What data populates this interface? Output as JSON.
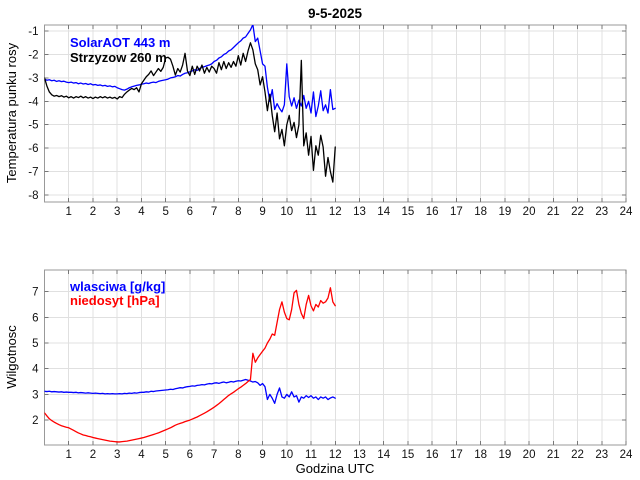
{
  "figure": {
    "title": "9-5-2025",
    "xlabel": "Godzina UTC"
  },
  "colors": {
    "background": "#ffffff",
    "grid": "#e0e0e0",
    "frame": "#999999",
    "tick": "#777777",
    "blue": "#0000ff",
    "black": "#000000",
    "red": "#ff0000"
  },
  "chart_data": [
    {
      "type": "line",
      "title": "9-5-2025",
      "ylabel": "Temperatura punku rosy",
      "xlabel": "",
      "xlim": [
        0,
        24
      ],
      "ylim": [
        -8.3,
        -0.74
      ],
      "xticks": [
        1,
        2,
        3,
        4,
        5,
        6,
        7,
        8,
        9,
        10,
        11,
        12,
        13,
        14,
        15,
        16,
        17,
        18,
        19,
        20,
        21,
        22,
        23,
        24
      ],
      "yticks": [
        -8,
        -7,
        -6,
        -5,
        -4,
        -3,
        -2,
        -1
      ],
      "grid": true,
      "legend_position": "top-left",
      "series": [
        {
          "name": "SolarAOT 443 m",
          "color": "#0000ff",
          "x_start": 0,
          "x_step": 0.1,
          "y": [
            -3.05,
            -3.1,
            -3.08,
            -3.12,
            -3.1,
            -3.15,
            -3.12,
            -3.16,
            -3.14,
            -3.18,
            -3.2,
            -3.18,
            -3.22,
            -3.2,
            -3.25,
            -3.22,
            -3.26,
            -3.24,
            -3.28,
            -3.25,
            -3.3,
            -3.28,
            -3.32,
            -3.3,
            -3.34,
            -3.32,
            -3.36,
            -3.34,
            -3.38,
            -3.36,
            -3.42,
            -3.46,
            -3.5,
            -3.52,
            -3.48,
            -3.42,
            -3.38,
            -3.35,
            -3.32,
            -3.3,
            -3.27,
            -3.25,
            -3.22,
            -3.24,
            -3.2,
            -3.18,
            -3.2,
            -3.15,
            -3.12,
            -3.1,
            -3.08,
            -3.05,
            -3.0,
            -2.98,
            -2.95,
            -2.9,
            -2.92,
            -2.85,
            -2.8,
            -2.78,
            -2.74,
            -2.7,
            -2.65,
            -2.68,
            -2.6,
            -2.55,
            -2.52,
            -2.48,
            -2.45,
            -2.4,
            -2.3,
            -2.25,
            -2.15,
            -2.1,
            -2.0,
            -1.95,
            -1.85,
            -1.8,
            -1.7,
            -1.6,
            -1.5,
            -1.42,
            -1.3,
            -1.25,
            -1.1,
            -0.95,
            -0.72,
            -1.45,
            -1.3,
            -1.85,
            -2.4,
            -2.5,
            -3.4,
            -4.0,
            -3.5,
            -4.35,
            -4.1,
            -4.3,
            -4.45,
            -4.15,
            -2.4,
            -3.8,
            -4.2,
            -3.85,
            -4.3,
            -3.95,
            -4.2,
            -3.75,
            -4.3,
            -4.0,
            -4.5,
            -3.6,
            -4.65,
            -4.2,
            -3.55,
            -4.4,
            -4.15,
            -4.5,
            -3.5,
            -4.35,
            -4.3
          ]
        },
        {
          "name": "Strzyzow 260 m",
          "color": "#000000",
          "x_start": 0,
          "x_step": 0.1,
          "y": [
            -3.0,
            -3.35,
            -3.6,
            -3.72,
            -3.78,
            -3.75,
            -3.8,
            -3.76,
            -3.82,
            -3.78,
            -3.85,
            -3.8,
            -3.86,
            -3.8,
            -3.84,
            -3.78,
            -3.85,
            -3.8,
            -3.86,
            -3.82,
            -3.88,
            -3.82,
            -3.86,
            -3.8,
            -3.85,
            -3.8,
            -3.86,
            -3.82,
            -3.87,
            -3.83,
            -3.9,
            -3.8,
            -3.84,
            -3.7,
            -3.6,
            -3.52,
            -3.45,
            -3.5,
            -3.42,
            -3.6,
            -3.25,
            -3.1,
            -2.95,
            -2.85,
            -2.7,
            -2.9,
            -2.75,
            -2.6,
            -2.72,
            -2.55,
            -2.15,
            -2.12,
            -2.2,
            -2.5,
            -2.88,
            -2.6,
            -2.75,
            -2.45,
            -1.95,
            -2.7,
            -2.9,
            -2.5,
            -2.85,
            -2.5,
            -2.7,
            -2.45,
            -2.8,
            -2.55,
            -2.75,
            -2.5,
            -2.6,
            -2.8,
            -2.35,
            -2.65,
            -2.3,
            -2.6,
            -2.35,
            -2.55,
            -2.3,
            -2.5,
            -2.05,
            -2.45,
            -1.95,
            -2.3,
            -1.85,
            -1.5,
            -1.8,
            -2.4,
            -2.65,
            -3.3,
            -2.95,
            -3.6,
            -4.4,
            -3.7,
            -4.6,
            -5.3,
            -4.5,
            -5.6,
            -5.2,
            -5.9,
            -5.0,
            -4.6,
            -5.25,
            -4.9,
            -5.55,
            -5.0,
            -2.25,
            -5.9,
            -5.35,
            -6.3,
            -5.5,
            -6.95,
            -5.9,
            -6.3,
            -5.45,
            -5.95,
            -7.2,
            -6.4,
            -7.0,
            -7.45,
            -5.95
          ]
        }
      ]
    },
    {
      "type": "line",
      "title": "",
      "ylabel": "Wilgotnosc",
      "xlabel": "Godzina UTC",
      "xlim": [
        0,
        24
      ],
      "ylim": [
        1.03,
        7.84
      ],
      "xticks": [
        1,
        2,
        3,
        4,
        5,
        6,
        7,
        8,
        9,
        10,
        11,
        12,
        13,
        14,
        15,
        16,
        17,
        18,
        19,
        20,
        21,
        22,
        23,
        24
      ],
      "yticks": [
        2,
        3,
        4,
        5,
        6,
        7
      ],
      "grid": true,
      "legend_position": "top-left",
      "series": [
        {
          "name": "wlasciwa [g/kg]",
          "color": "#0000ff",
          "x_start": 0,
          "x_step": 0.1,
          "y": [
            3.12,
            3.11,
            3.12,
            3.1,
            3.11,
            3.1,
            3.09,
            3.1,
            3.08,
            3.09,
            3.08,
            3.08,
            3.07,
            3.08,
            3.06,
            3.07,
            3.06,
            3.05,
            3.06,
            3.05,
            3.04,
            3.05,
            3.04,
            3.03,
            3.04,
            3.02,
            3.03,
            3.02,
            3.03,
            3.02,
            3.02,
            3.03,
            3.02,
            3.04,
            3.03,
            3.05,
            3.04,
            3.06,
            3.05,
            3.07,
            3.08,
            3.08,
            3.1,
            3.09,
            3.12,
            3.11,
            3.13,
            3.14,
            3.15,
            3.16,
            3.17,
            3.18,
            3.2,
            3.19,
            3.22,
            3.24,
            3.26,
            3.25,
            3.28,
            3.3,
            3.31,
            3.33,
            3.32,
            3.35,
            3.36,
            3.38,
            3.37,
            3.4,
            3.42,
            3.41,
            3.44,
            3.45,
            3.43,
            3.46,
            3.48,
            3.45,
            3.47,
            3.5,
            3.48,
            3.51,
            3.53,
            3.52,
            3.55,
            3.58,
            3.55,
            3.52,
            3.48,
            3.5,
            3.45,
            3.35,
            3.42,
            3.3,
            2.8,
            3.0,
            2.85,
            2.65,
            3.0,
            3.25,
            2.9,
            2.85,
            3.0,
            2.9,
            3.1,
            2.9,
            2.95,
            2.7,
            2.9,
            2.85,
            2.95,
            2.88,
            2.95,
            2.85,
            2.9,
            2.8,
            2.9,
            2.85,
            2.9,
            2.8,
            2.86,
            2.9,
            2.85
          ]
        },
        {
          "name": "niedosyt [hPa]",
          "color": "#ff0000",
          "x_start": 0,
          "x_step": 0.1,
          "y": [
            2.28,
            2.16,
            2.05,
            1.98,
            1.92,
            1.87,
            1.82,
            1.78,
            1.75,
            1.72,
            1.7,
            1.65,
            1.6,
            1.55,
            1.5,
            1.46,
            1.42,
            1.4,
            1.37,
            1.35,
            1.32,
            1.3,
            1.28,
            1.26,
            1.24,
            1.22,
            1.2,
            1.18,
            1.17,
            1.16,
            1.15,
            1.15,
            1.16,
            1.17,
            1.18,
            1.2,
            1.22,
            1.24,
            1.26,
            1.28,
            1.3,
            1.32,
            1.35,
            1.38,
            1.41,
            1.44,
            1.47,
            1.5,
            1.54,
            1.58,
            1.62,
            1.66,
            1.7,
            1.75,
            1.8,
            1.84,
            1.87,
            1.9,
            1.94,
            1.97,
            2.0,
            2.04,
            2.08,
            2.12,
            2.17,
            2.22,
            2.27,
            2.32,
            2.38,
            2.44,
            2.5,
            2.57,
            2.64,
            2.72,
            2.8,
            2.88,
            2.96,
            3.02,
            3.08,
            3.15,
            3.22,
            3.28,
            3.35,
            3.42,
            3.5,
            3.58,
            4.6,
            4.25,
            4.42,
            4.55,
            4.68,
            4.8,
            5.0,
            5.15,
            5.35,
            5.3,
            5.8,
            6.3,
            6.6,
            6.2,
            5.95,
            5.9,
            6.3,
            6.95,
            7.05,
            6.5,
            6.15,
            5.95,
            6.5,
            6.85,
            6.45,
            6.25,
            6.5,
            6.4,
            6.65,
            6.55,
            6.6,
            6.75,
            7.15,
            6.6,
            6.45
          ]
        }
      ]
    }
  ]
}
